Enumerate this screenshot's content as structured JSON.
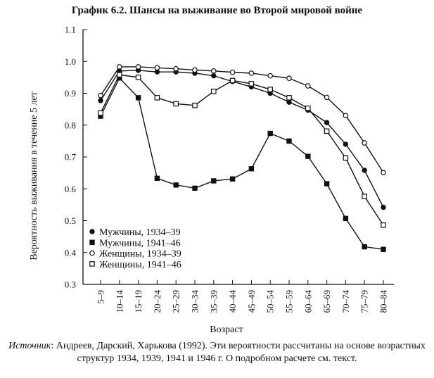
{
  "chart_data": {
    "type": "line",
    "title": "График 6.2. Шансы на выживание во Второй мировой войне",
    "xlabel": "Возраст",
    "ylabel": "Вероятность выживания в течение 5 лет",
    "ylim": [
      0.3,
      1.1
    ],
    "y_ticks": [
      "0.3",
      "0.4",
      "0.5",
      "0.6",
      "0.7",
      "0.8",
      "0.9",
      "1.0",
      "1.1"
    ],
    "grid": false,
    "legend_position": "bottom-left",
    "categories": [
      "5–9",
      "10–14",
      "15–19",
      "20–24",
      "25–29",
      "30–34",
      "35–39",
      "40–44",
      "45–49",
      "50–54",
      "55–59",
      "60–64",
      "65–69",
      "70–74",
      "75–79",
      "80–84"
    ],
    "series": [
      {
        "name": "Мужчины, 1934–39",
        "marker": "filled-circle",
        "values": [
          0.877,
          0.97,
          0.972,
          0.967,
          0.967,
          0.963,
          0.955,
          0.937,
          0.92,
          0.9,
          0.872,
          0.847,
          0.808,
          0.74,
          0.658,
          0.542
        ]
      },
      {
        "name": "Мужчины, 1941–46",
        "marker": "filled-square",
        "values": [
          0.828,
          0.948,
          0.886,
          0.633,
          0.612,
          0.602,
          0.625,
          0.631,
          0.663,
          0.774,
          0.75,
          0.702,
          0.616,
          0.507,
          0.418,
          0.41
        ]
      },
      {
        "name": "Женщины, 1934–39",
        "marker": "open-circle",
        "values": [
          0.893,
          0.983,
          0.983,
          0.98,
          0.977,
          0.973,
          0.97,
          0.966,
          0.963,
          0.955,
          0.947,
          0.923,
          0.887,
          0.83,
          0.744,
          0.651
        ]
      },
      {
        "name": "Женщины, 1941–46",
        "marker": "open-square",
        "values": [
          0.838,
          0.958,
          0.95,
          0.886,
          0.867,
          0.862,
          0.906,
          0.94,
          0.93,
          0.912,
          0.886,
          0.853,
          0.781,
          0.697,
          0.576,
          0.486
        ]
      }
    ]
  },
  "source": {
    "label": "Источник",
    "text": ": Андреев, Дарский, Харькова (1992). Эти вероятности рассчитаны на основе возрастных структур 1934, 1939, 1941 и 1946 г. О подробном расчете см. текст."
  }
}
